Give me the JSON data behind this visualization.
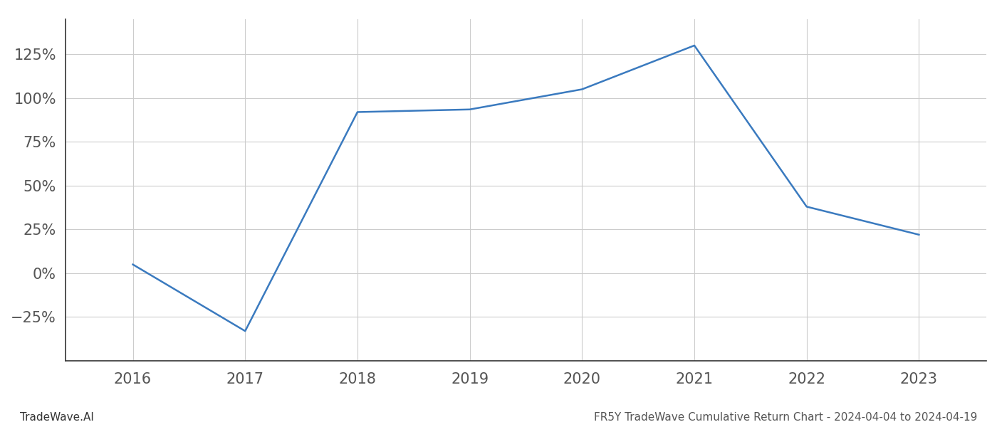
{
  "x_years": [
    2016,
    2017,
    2018,
    2019,
    2020,
    2021,
    2022,
    2023
  ],
  "y_values": [
    5.0,
    -33.0,
    92.0,
    93.5,
    105.0,
    130.0,
    38.0,
    22.0
  ],
  "line_color": "#3a7abf",
  "line_width": 1.8,
  "footer_left": "TradeWave.AI",
  "footer_right": "FR5Y TradeWave Cumulative Return Chart - 2024-04-04 to 2024-04-19",
  "ylim": [
    -50,
    145
  ],
  "yticks": [
    -25,
    0,
    25,
    50,
    75,
    100,
    125
  ],
  "xlim": [
    2015.4,
    2023.6
  ],
  "background_color": "#ffffff",
  "grid_color": "#cccccc",
  "footer_fontsize": 11,
  "tick_fontsize": 15,
  "spine_color": "#333333"
}
